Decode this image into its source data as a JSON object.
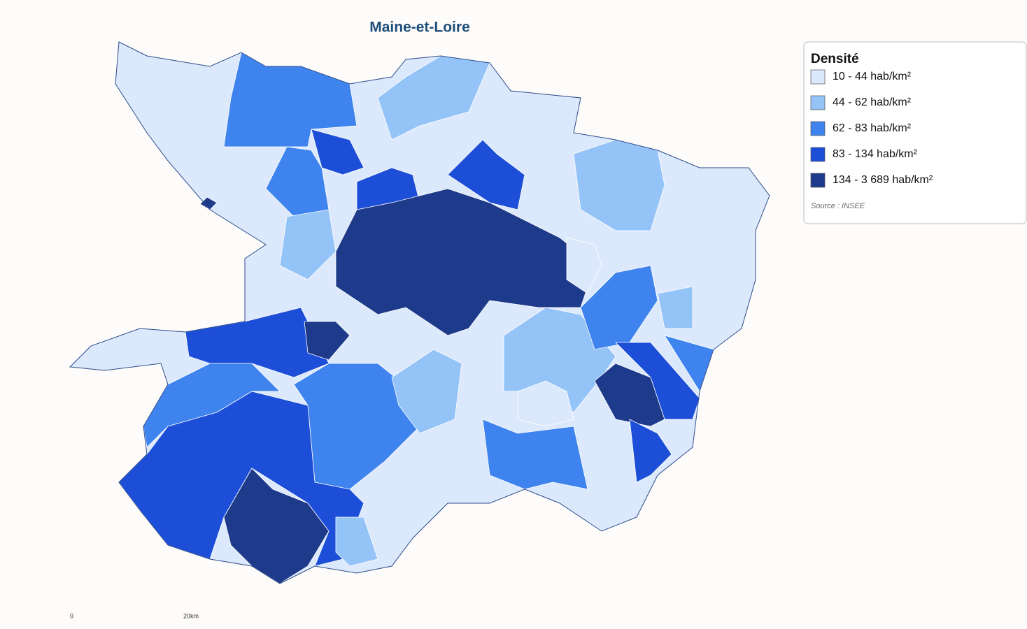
{
  "title": "Maine-et-Loire",
  "legend": {
    "title": "Densité",
    "classes": [
      {
        "label": "10 - 44 hab/km²",
        "color": "#dce9fc"
      },
      {
        "label": "44 - 62 hab/km²",
        "color": "#94c3f7"
      },
      {
        "label": "62 - 83 hab/km²",
        "color": "#3e83ee"
      },
      {
        "label": "83 - 134 hab/km²",
        "color": "#1d4ed8"
      },
      {
        "label": "134 - 3 689 hab/km²",
        "color": "#1e3a8a"
      }
    ],
    "source": "Source : INSEE"
  },
  "scale": {
    "start": "0",
    "end": "20km"
  }
}
